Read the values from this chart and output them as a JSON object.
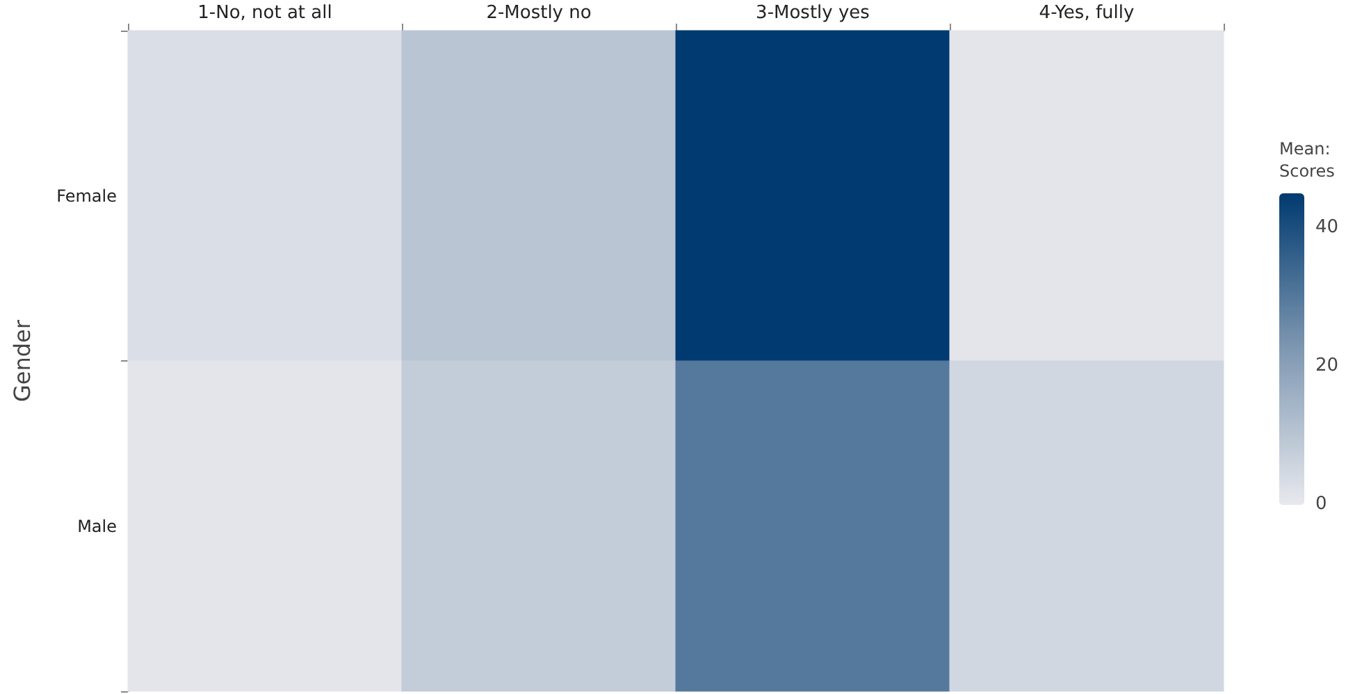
{
  "chart_data": {
    "type": "heatmap",
    "ylabel": "Gender",
    "clabel": "Mean: Scores",
    "categories": [
      "1-No, not at all",
      "2-Mostly no",
      "3-Mostly yes",
      "4-Yes, fully"
    ],
    "y_categories": [
      "Female",
      "Male"
    ],
    "cells": [
      [
        3,
        10,
        45,
        1
      ],
      [
        1,
        8,
        30,
        5
      ]
    ],
    "clim": [
      0,
      45
    ],
    "cticks": [
      0,
      20,
      40
    ]
  }
}
